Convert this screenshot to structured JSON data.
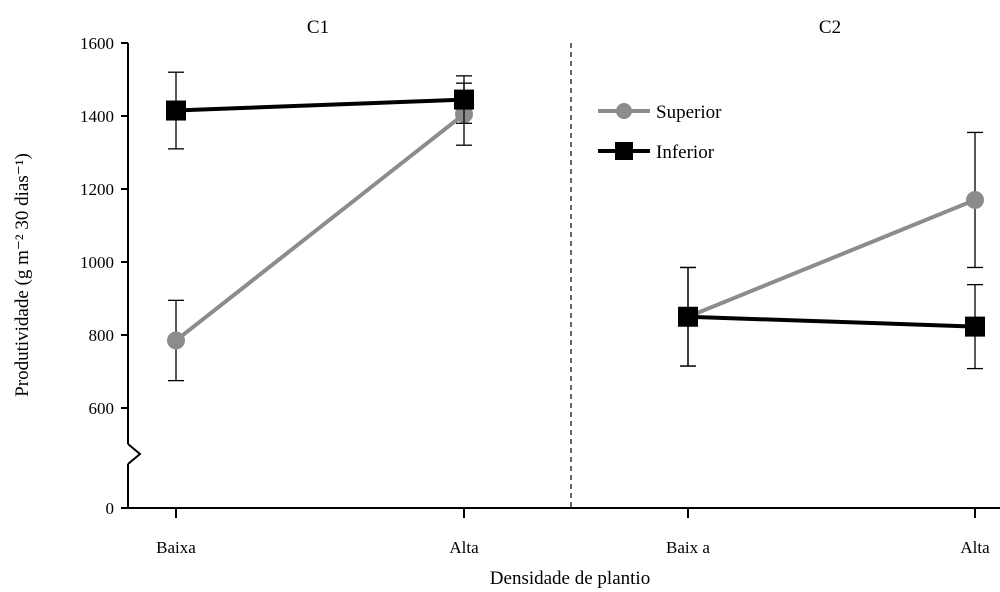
{
  "chart_data": {
    "type": "line",
    "ylabel": "Produtividade (g m⁻² 30 dias⁻¹)",
    "xlabel": "Densidade de plantio",
    "yticks": [
      0,
      600,
      800,
      1000,
      1200,
      1400,
      1600
    ],
    "ylim_upper": [
      500,
      1600
    ],
    "y_axis_break": true,
    "panels": [
      {
        "title": "C1",
        "categories": [
          "Baixa",
          "Alta"
        ],
        "series": [
          {
            "name": "Superior",
            "color": "#8c8c8c",
            "marker": "circle",
            "values": [
              785,
              1405
            ],
            "errors": [
              110,
              85
            ]
          },
          {
            "name": "Inferior",
            "color": "#000000",
            "marker": "square",
            "values": [
              1415,
              1445
            ],
            "errors": [
              105,
              65
            ]
          }
        ]
      },
      {
        "title": "C2",
        "categories": [
          "Baix a",
          "Alta"
        ],
        "series": [
          {
            "name": "Superior",
            "color": "#8c8c8c",
            "marker": "circle",
            "values": [
              850,
              1170
            ],
            "errors": [
              135,
              185
            ]
          },
          {
            "name": "Inferior",
            "color": "#000000",
            "marker": "square",
            "values": [
              850,
              823
            ],
            "errors": [
              135,
              115
            ]
          }
        ]
      }
    ],
    "legend": {
      "placement": "upper-right-of-C2",
      "entries": [
        {
          "label": "Superior",
          "color": "#8c8c8c",
          "marker": "circle"
        },
        {
          "label": "Inferior",
          "color": "#000000",
          "marker": "square"
        }
      ]
    },
    "grid": false
  }
}
